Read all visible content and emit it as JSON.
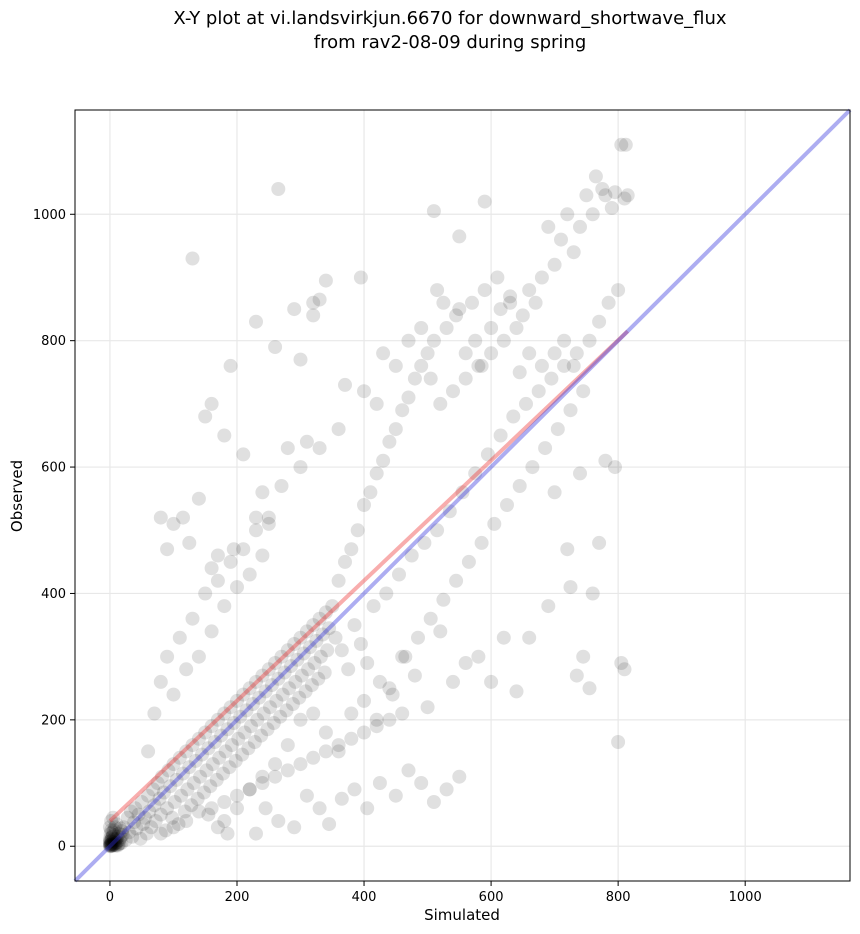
{
  "chart_data": {
    "type": "scatter",
    "title_lines": [
      "X-Y plot at vi.landsvirkjun.6670 for downward_shortwave_flux",
      "from rav2-08-09 during spring"
    ],
    "xlabel": "Simulated",
    "ylabel": "Observed",
    "xlim": [
      -55,
      1165
    ],
    "ylim": [
      -55,
      1165
    ],
    "xticks": [
      0,
      200,
      400,
      600,
      800,
      1000
    ],
    "yticks": [
      0,
      200,
      400,
      600,
      800,
      1000
    ],
    "grid": true,
    "legend": "none",
    "points_color": "#000000",
    "points_alpha": 0.12,
    "one_to_one_line": {
      "color": "#3333dd",
      "from": [
        -55,
        -55
      ],
      "to": [
        1165,
        1165
      ]
    },
    "regression_line": {
      "color": "#ee3333",
      "from": [
        0,
        40
      ],
      "to": [
        815,
        815
      ]
    },
    "points": [
      [
        0,
        0
      ],
      [
        1,
        2
      ],
      [
        2,
        0
      ],
      [
        0,
        5
      ],
      [
        3,
        3
      ],
      [
        4,
        1
      ],
      [
        1,
        8
      ],
      [
        5,
        6
      ],
      [
        6,
        2
      ],
      [
        2,
        10
      ],
      [
        7,
        4
      ],
      [
        8,
        9
      ],
      [
        3,
        14
      ],
      [
        9,
        1
      ],
      [
        10,
        12
      ],
      [
        5,
        18
      ],
      [
        11,
        6
      ],
      [
        12,
        15
      ],
      [
        4,
        22
      ],
      [
        13,
        3
      ],
      [
        14,
        20
      ],
      [
        6,
        25
      ],
      [
        15,
        10
      ],
      [
        16,
        28
      ],
      [
        8,
        30
      ],
      [
        17,
        14
      ],
      [
        18,
        5
      ],
      [
        19,
        24
      ],
      [
        10,
        35
      ],
      [
        20,
        18
      ],
      [
        0,
        12
      ],
      [
        1,
        20
      ],
      [
        2,
        25
      ],
      [
        3,
        8
      ],
      [
        0,
        30
      ],
      [
        2,
        40
      ],
      [
        5,
        45
      ],
      [
        1,
        3
      ],
      [
        4,
        15
      ],
      [
        6,
        11
      ],
      [
        0,
        2
      ],
      [
        2,
        4
      ],
      [
        3,
        1
      ],
      [
        1,
        1
      ],
      [
        5,
        3
      ],
      [
        0,
        8
      ],
      [
        8,
        2
      ],
      [
        9,
        5
      ],
      [
        12,
        1
      ],
      [
        15,
        4
      ],
      [
        22,
        30
      ],
      [
        25,
        10
      ],
      [
        28,
        45
      ],
      [
        30,
        22
      ],
      [
        33,
        55
      ],
      [
        35,
        15
      ],
      [
        38,
        38
      ],
      [
        40,
        60
      ],
      [
        42,
        28
      ],
      [
        45,
        50
      ],
      [
        48,
        12
      ],
      [
        50,
        70
      ],
      [
        52,
        35
      ],
      [
        55,
        45
      ],
      [
        58,
        20
      ],
      [
        60,
        80
      ],
      [
        62,
        55
      ],
      [
        65,
        30
      ],
      [
        68,
        90
      ],
      [
        70,
        65
      ],
      [
        72,
        40
      ],
      [
        75,
        100
      ],
      [
        78,
        75
      ],
      [
        80,
        50
      ],
      [
        82,
        110
      ],
      [
        85,
        85
      ],
      [
        88,
        25
      ],
      [
        90,
        60
      ],
      [
        92,
        120
      ],
      [
        95,
        95
      ],
      [
        98,
        45
      ],
      [
        100,
        130
      ],
      [
        102,
        70
      ],
      [
        105,
        105
      ],
      [
        108,
        35
      ],
      [
        110,
        140
      ],
      [
        112,
        80
      ],
      [
        115,
        115
      ],
      [
        118,
        55
      ],
      [
        120,
        150
      ],
      [
        122,
        90
      ],
      [
        125,
        125
      ],
      [
        128,
        65
      ],
      [
        130,
        160
      ],
      [
        132,
        100
      ],
      [
        135,
        135
      ],
      [
        138,
        75
      ],
      [
        140,
        170
      ],
      [
        142,
        110
      ],
      [
        145,
        145
      ],
      [
        148,
        85
      ],
      [
        150,
        180
      ],
      [
        152,
        120
      ],
      [
        155,
        155
      ],
      [
        158,
        95
      ],
      [
        160,
        190
      ],
      [
        162,
        130
      ],
      [
        165,
        165
      ],
      [
        168,
        105
      ],
      [
        170,
        200
      ],
      [
        172,
        140
      ],
      [
        175,
        175
      ],
      [
        178,
        115
      ],
      [
        180,
        210
      ],
      [
        182,
        150
      ],
      [
        185,
        185
      ],
      [
        188,
        125
      ],
      [
        190,
        220
      ],
      [
        192,
        160
      ],
      [
        195,
        195
      ],
      [
        198,
        135
      ],
      [
        200,
        230
      ],
      [
        202,
        170
      ],
      [
        205,
        205
      ],
      [
        208,
        145
      ],
      [
        210,
        240
      ],
      [
        212,
        180
      ],
      [
        215,
        215
      ],
      [
        218,
        155
      ],
      [
        220,
        250
      ],
      [
        222,
        190
      ],
      [
        225,
        225
      ],
      [
        228,
        165
      ],
      [
        230,
        260
      ],
      [
        232,
        200
      ],
      [
        235,
        235
      ],
      [
        238,
        175
      ],
      [
        240,
        270
      ],
      [
        242,
        210
      ],
      [
        245,
        245
      ],
      [
        248,
        185
      ],
      [
        250,
        280
      ],
      [
        252,
        220
      ],
      [
        255,
        255
      ],
      [
        258,
        195
      ],
      [
        260,
        290
      ],
      [
        262,
        230
      ],
      [
        265,
        265
      ],
      [
        268,
        205
      ],
      [
        270,
        300
      ],
      [
        272,
        240
      ],
      [
        275,
        275
      ],
      [
        278,
        215
      ],
      [
        280,
        310
      ],
      [
        282,
        250
      ],
      [
        285,
        285
      ],
      [
        288,
        225
      ],
      [
        290,
        320
      ],
      [
        292,
        260
      ],
      [
        295,
        295
      ],
      [
        298,
        235
      ],
      [
        300,
        330
      ],
      [
        302,
        270
      ],
      [
        305,
        305
      ],
      [
        308,
        245
      ],
      [
        310,
        340
      ],
      [
        312,
        280
      ],
      [
        315,
        315
      ],
      [
        318,
        255
      ],
      [
        320,
        350
      ],
      [
        322,
        290
      ],
      [
        325,
        325
      ],
      [
        328,
        265
      ],
      [
        330,
        360
      ],
      [
        332,
        300
      ],
      [
        335,
        335
      ],
      [
        338,
        275
      ],
      [
        340,
        370
      ],
      [
        342,
        310
      ],
      [
        345,
        345
      ],
      [
        60,
        150
      ],
      [
        70,
        210
      ],
      [
        80,
        260
      ],
      [
        90,
        300
      ],
      [
        100,
        240
      ],
      [
        110,
        330
      ],
      [
        120,
        280
      ],
      [
        130,
        360
      ],
      [
        140,
        300
      ],
      [
        150,
        400
      ],
      [
        160,
        340
      ],
      [
        170,
        420
      ],
      [
        180,
        380
      ],
      [
        190,
        450
      ],
      [
        200,
        410
      ],
      [
        210,
        470
      ],
      [
        220,
        430
      ],
      [
        230,
        500
      ],
      [
        240,
        460
      ],
      [
        250,
        520
      ],
      [
        80,
        20
      ],
      [
        100,
        30
      ],
      [
        120,
        40
      ],
      [
        140,
        55
      ],
      [
        160,
        60
      ],
      [
        180,
        70
      ],
      [
        200,
        80
      ],
      [
        220,
        90
      ],
      [
        240,
        100
      ],
      [
        260,
        110
      ],
      [
        280,
        120
      ],
      [
        300,
        130
      ],
      [
        320,
        140
      ],
      [
        340,
        150
      ],
      [
        360,
        160
      ],
      [
        380,
        170
      ],
      [
        400,
        180
      ],
      [
        420,
        190
      ],
      [
        440,
        200
      ],
      [
        460,
        210
      ],
      [
        350,
        380
      ],
      [
        355,
        330
      ],
      [
        360,
        420
      ],
      [
        365,
        310
      ],
      [
        370,
        450
      ],
      [
        375,
        280
      ],
      [
        380,
        470
      ],
      [
        385,
        350
      ],
      [
        390,
        500
      ],
      [
        395,
        320
      ],
      [
        400,
        540
      ],
      [
        405,
        290
      ],
      [
        410,
        560
      ],
      [
        415,
        380
      ],
      [
        420,
        590
      ],
      [
        425,
        260
      ],
      [
        430,
        610
      ],
      [
        435,
        400
      ],
      [
        440,
        640
      ],
      [
        445,
        240
      ],
      [
        450,
        660
      ],
      [
        455,
        430
      ],
      [
        460,
        690
      ],
      [
        465,
        300
      ],
      [
        470,
        710
      ],
      [
        475,
        460
      ],
      [
        480,
        740
      ],
      [
        485,
        330
      ],
      [
        490,
        760
      ],
      [
        495,
        480
      ],
      [
        500,
        780
      ],
      [
        505,
        360
      ],
      [
        510,
        800
      ],
      [
        515,
        500
      ],
      [
        520,
        700
      ],
      [
        525,
        390
      ],
      [
        530,
        820
      ],
      [
        535,
        530
      ],
      [
        540,
        720
      ],
      [
        545,
        420
      ],
      [
        550,
        850
      ],
      [
        555,
        560
      ],
      [
        560,
        740
      ],
      [
        565,
        450
      ],
      [
        570,
        860
      ],
      [
        575,
        590
      ],
      [
        580,
        760
      ],
      [
        585,
        480
      ],
      [
        590,
        880
      ],
      [
        595,
        620
      ],
      [
        600,
        780
      ],
      [
        605,
        510
      ],
      [
        610,
        900
      ],
      [
        615,
        650
      ],
      [
        620,
        800
      ],
      [
        625,
        540
      ],
      [
        630,
        870
      ],
      [
        635,
        680
      ],
      [
        640,
        820
      ],
      [
        645,
        570
      ],
      [
        650,
        840
      ],
      [
        655,
        700
      ],
      [
        660,
        880
      ],
      [
        665,
        600
      ],
      [
        670,
        860
      ],
      [
        675,
        720
      ],
      [
        680,
        900
      ],
      [
        685,
        630
      ],
      [
        690,
        980
      ],
      [
        695,
        740
      ],
      [
        700,
        920
      ],
      [
        705,
        660
      ],
      [
        710,
        960
      ],
      [
        715,
        760
      ],
      [
        720,
        1000
      ],
      [
        725,
        690
      ],
      [
        730,
        940
      ],
      [
        735,
        780
      ],
      [
        740,
        980
      ],
      [
        745,
        720
      ],
      [
        750,
        1030
      ],
      [
        755,
        800
      ],
      [
        760,
        1000
      ],
      [
        765,
        1060
      ],
      [
        770,
        830
      ],
      [
        775,
        1040
      ],
      [
        780,
        1030
      ],
      [
        785,
        860
      ],
      [
        790,
        1010
      ],
      [
        795,
        1035
      ],
      [
        800,
        880
      ],
      [
        805,
        1110
      ],
      [
        810,
        1025
      ],
      [
        812,
        1110
      ],
      [
        815,
        1030
      ],
      [
        700,
        560
      ],
      [
        720,
        470
      ],
      [
        740,
        590
      ],
      [
        760,
        400
      ],
      [
        780,
        610
      ],
      [
        795,
        600
      ],
      [
        805,
        290
      ],
      [
        810,
        280
      ],
      [
        800,
        165
      ],
      [
        770,
        480
      ],
      [
        755,
        250
      ],
      [
        735,
        270
      ],
      [
        745,
        300
      ],
      [
        725,
        410
      ],
      [
        690,
        380
      ],
      [
        660,
        330
      ],
      [
        640,
        245
      ],
      [
        620,
        330
      ],
      [
        600,
        260
      ],
      [
        580,
        300
      ],
      [
        560,
        290
      ],
      [
        540,
        260
      ],
      [
        520,
        340
      ],
      [
        500,
        220
      ],
      [
        480,
        270
      ],
      [
        460,
        300
      ],
      [
        440,
        250
      ],
      [
        420,
        200
      ],
      [
        400,
        230
      ],
      [
        380,
        210
      ],
      [
        360,
        150
      ],
      [
        340,
        180
      ],
      [
        320,
        210
      ],
      [
        300,
        200
      ],
      [
        280,
        160
      ],
      [
        260,
        130
      ],
      [
        240,
        110
      ],
      [
        220,
        90
      ],
      [
        200,
        60
      ],
      [
        180,
        40
      ],
      [
        155,
        50
      ],
      [
        170,
        30
      ],
      [
        185,
        20
      ],
      [
        230,
        20
      ],
      [
        245,
        60
      ],
      [
        265,
        40
      ],
      [
        290,
        30
      ],
      [
        310,
        80
      ],
      [
        330,
        60
      ],
      [
        345,
        35
      ],
      [
        365,
        75
      ],
      [
        385,
        90
      ],
      [
        405,
        60
      ],
      [
        425,
        100
      ],
      [
        450,
        80
      ],
      [
        470,
        120
      ],
      [
        490,
        100
      ],
      [
        510,
        70
      ],
      [
        530,
        90
      ],
      [
        550,
        110
      ],
      [
        130,
        930
      ],
      [
        265,
        1040
      ],
      [
        510,
        1005
      ],
      [
        590,
        1020
      ],
      [
        550,
        965
      ],
      [
        260,
        790
      ],
      [
        230,
        830
      ],
      [
        190,
        760
      ],
      [
        290,
        850
      ],
      [
        320,
        840
      ],
      [
        340,
        895
      ],
      [
        395,
        900
      ],
      [
        320,
        860
      ],
      [
        330,
        865
      ],
      [
        300,
        770
      ],
      [
        160,
        700
      ],
      [
        150,
        680
      ],
      [
        180,
        650
      ],
      [
        210,
        620
      ],
      [
        240,
        560
      ],
      [
        100,
        510
      ],
      [
        115,
        520
      ],
      [
        80,
        520
      ],
      [
        90,
        470
      ],
      [
        140,
        550
      ],
      [
        125,
        480
      ],
      [
        170,
        460
      ],
      [
        160,
        440
      ],
      [
        195,
        470
      ],
      [
        230,
        520
      ],
      [
        250,
        510
      ],
      [
        270,
        570
      ],
      [
        280,
        630
      ],
      [
        300,
        600
      ],
      [
        310,
        640
      ],
      [
        330,
        630
      ],
      [
        360,
        660
      ],
      [
        370,
        730
      ],
      [
        400,
        720
      ],
      [
        420,
        700
      ],
      [
        430,
        780
      ],
      [
        450,
        760
      ],
      [
        470,
        800
      ],
      [
        490,
        820
      ],
      [
        505,
        740
      ],
      [
        515,
        880
      ],
      [
        525,
        860
      ],
      [
        545,
        840
      ],
      [
        560,
        780
      ],
      [
        575,
        800
      ],
      [
        585,
        760
      ],
      [
        600,
        820
      ],
      [
        615,
        850
      ],
      [
        630,
        860
      ],
      [
        645,
        750
      ],
      [
        660,
        780
      ],
      [
        680,
        760
      ],
      [
        700,
        780
      ],
      [
        715,
        800
      ],
      [
        730,
        760
      ]
    ]
  }
}
